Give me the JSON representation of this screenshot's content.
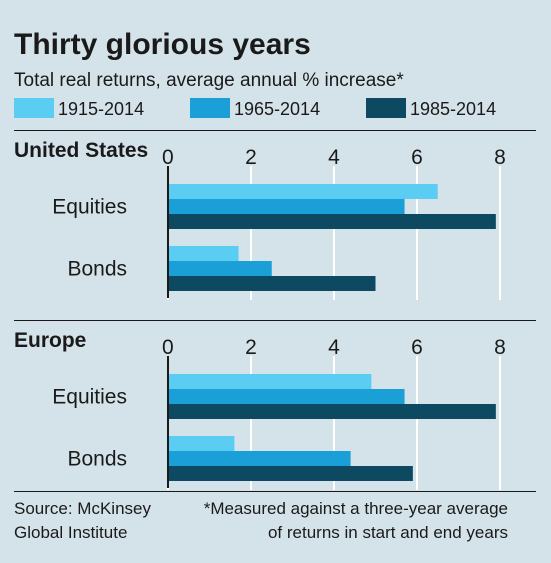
{
  "chart_data": {
    "type": "bar",
    "orientation": "horizontal",
    "title": "Thirty glorious years",
    "subtitle": "Total real returns, average annual % increase*",
    "legend": {
      "placement": "top",
      "items": [
        {
          "name": "1915-2014",
          "color": "#5bcdf3"
        },
        {
          "name": "1965-2014",
          "color": "#1a9fd6"
        },
        {
          "name": "1985-2014",
          "color": "#0d4a62"
        }
      ]
    },
    "xlim": [
      0,
      8
    ],
    "xticks": [
      0,
      2,
      4,
      6,
      8
    ],
    "grid": true,
    "panels": [
      {
        "name": "United States",
        "categories": [
          "Equities",
          "Bonds"
        ],
        "series": [
          {
            "name": "1915-2014",
            "values": [
              6.5,
              1.7
            ]
          },
          {
            "name": "1965-2014",
            "values": [
              5.7,
              2.5
            ]
          },
          {
            "name": "1985-2014",
            "values": [
              7.9,
              5.0
            ]
          }
        ]
      },
      {
        "name": "Europe",
        "categories": [
          "Equities",
          "Bonds"
        ],
        "series": [
          {
            "name": "1915-2014",
            "values": [
              4.9,
              1.6
            ]
          },
          {
            "name": "1965-2014",
            "values": [
              5.7,
              4.4
            ]
          },
          {
            "name": "1985-2014",
            "values": [
              7.9,
              5.9
            ]
          }
        ]
      }
    ],
    "source": "Source: McKinsey Global Institute",
    "source_lines": [
      "Source: McKinsey",
      "Global Institute"
    ],
    "footnote": "*Measured against a three-year average of returns in start and end years",
    "footnote_lines": [
      "*Measured against a three-year average",
      "of returns in start and end years"
    ]
  },
  "colors": {
    "background": "#d4e3ea",
    "text": "#1a1a1a",
    "gridline": "#ffffff",
    "axis": "#1a1a1a"
  }
}
